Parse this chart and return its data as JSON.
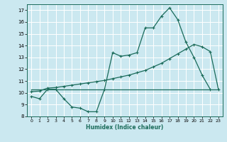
{
  "title": "",
  "xlabel": "Humidex (Indice chaleur)",
  "bg_color": "#cbe8f0",
  "grid_color": "#ffffff",
  "line_color": "#1a6b5a",
  "xlim": [
    -0.5,
    23.5
  ],
  "ylim": [
    8,
    17.5
  ],
  "xticks": [
    0,
    1,
    2,
    3,
    4,
    5,
    6,
    7,
    8,
    9,
    10,
    11,
    12,
    13,
    14,
    15,
    16,
    17,
    18,
    19,
    20,
    21,
    22,
    23
  ],
  "yticks": [
    8,
    9,
    10,
    11,
    12,
    13,
    14,
    15,
    16,
    17
  ],
  "line1_x": [
    0,
    1,
    2,
    3,
    4,
    5,
    6,
    7,
    8,
    9,
    10,
    11,
    12,
    13,
    14,
    15,
    16,
    17,
    18,
    19,
    20,
    21,
    22
  ],
  "line1_y": [
    9.7,
    9.5,
    10.3,
    10.3,
    9.5,
    8.8,
    8.7,
    8.4,
    8.4,
    10.3,
    13.4,
    13.1,
    13.2,
    13.4,
    15.5,
    15.5,
    16.5,
    17.2,
    16.2,
    14.3,
    13.0,
    11.5,
    10.3
  ],
  "line2_x": [
    0,
    1,
    2,
    3,
    4,
    5,
    6,
    7,
    8,
    9,
    10,
    11,
    12,
    13,
    14,
    15,
    16,
    17,
    18,
    19,
    20,
    21,
    22,
    23
  ],
  "line2_y": [
    10.1,
    10.15,
    10.4,
    10.45,
    10.55,
    10.65,
    10.75,
    10.85,
    10.95,
    11.05,
    11.2,
    11.35,
    11.5,
    11.7,
    11.9,
    12.2,
    12.5,
    12.9,
    13.3,
    13.7,
    14.1,
    13.9,
    13.5,
    10.3
  ],
  "line3_x": [
    0,
    23
  ],
  "line3_y": [
    10.3,
    10.3
  ]
}
